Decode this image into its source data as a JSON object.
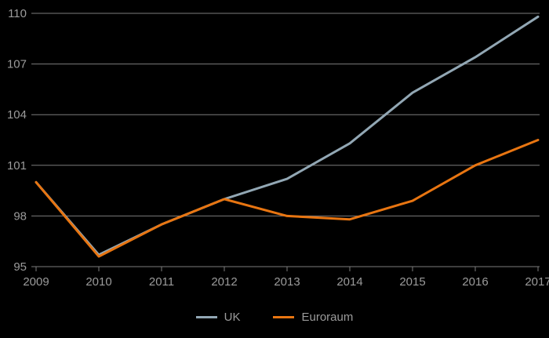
{
  "chart_data": {
    "type": "line",
    "title": "",
    "xlabel": "",
    "ylabel": "",
    "x": [
      2009,
      2010,
      2011,
      2012,
      2013,
      2014,
      2015,
      2016,
      2017
    ],
    "series": [
      {
        "name": "UK",
        "color": "#92a7b4",
        "values": [
          100.0,
          95.7,
          97.5,
          99.0,
          100.2,
          102.3,
          105.3,
          107.4,
          109.8
        ]
      },
      {
        "name": "Euroraum",
        "color": "#e87511",
        "values": [
          100.0,
          95.6,
          97.5,
          99.0,
          98.0,
          97.8,
          98.9,
          101.0,
          102.5
        ]
      }
    ],
    "ylim": [
      95,
      110
    ],
    "yticks": [
      95,
      98,
      101,
      104,
      107,
      110
    ],
    "xticks": [
      2009,
      2010,
      2011,
      2012,
      2013,
      2014,
      2015,
      2016,
      2017
    ],
    "grid": true,
    "legend_position": "bottom"
  },
  "style": {
    "background": "#000000",
    "grid_color": "#7c7c7c",
    "tick_color": "#7c7c7c",
    "label_color": "#9b9b9b",
    "line_width": 3
  }
}
